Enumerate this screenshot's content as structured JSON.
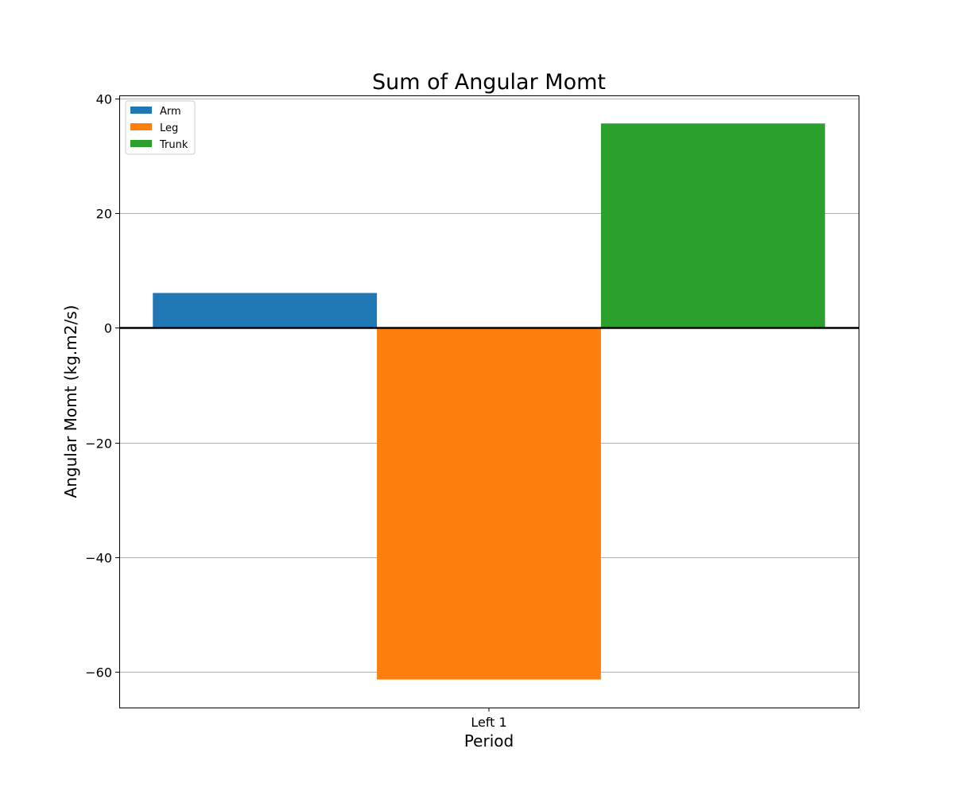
{
  "chart_data": {
    "type": "bar",
    "title": "Sum of Angular Momt",
    "xlabel": "Period",
    "ylabel": "Angular Momt (kg.m2/s)",
    "categories": [
      "Left 1"
    ],
    "series": [
      {
        "name": "Arm",
        "values": [
          6.1
        ],
        "color": "#1f77b4"
      },
      {
        "name": "Leg",
        "values": [
          -61.4
        ],
        "color": "#ff7f0e"
      },
      {
        "name": "Trunk",
        "values": [
          35.7
        ],
        "color": "#2ca02c"
      }
    ],
    "ylim": [
      -66.3,
      40.6
    ],
    "yticks": [
      40,
      20,
      0,
      -20,
      -40,
      -60
    ],
    "ytick_labels": [
      "40",
      "20",
      "0",
      "−20",
      "−40",
      "−60"
    ],
    "grid": "y",
    "zero_line": true,
    "legend_position": "top-left"
  }
}
